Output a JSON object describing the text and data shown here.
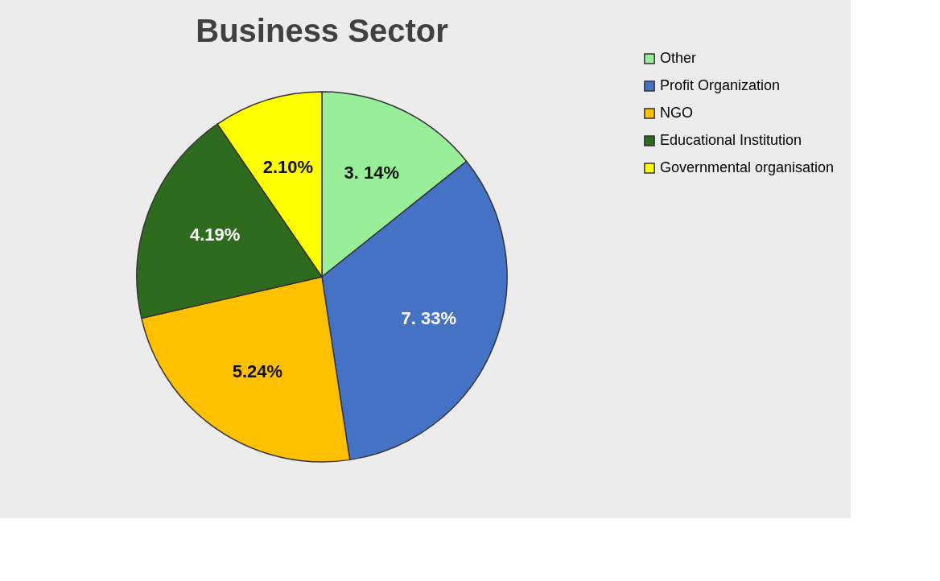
{
  "chart_data": {
    "type": "pie",
    "title": "Business Sector",
    "categories": [
      "Other",
      "Profit Organization",
      "NGO",
      "Educational Institution",
      "Governmental organisation"
    ],
    "values": [
      3.14,
      7.33,
      5.24,
      4.19,
      2.1
    ],
    "value_labels": [
      "3. 14%",
      "7. 33%",
      "5.24%",
      "4.19%",
      "2.10%"
    ],
    "colors": [
      "#99ee99",
      "#4472c4",
      "#ffc000",
      "#2e6b1f",
      "#ffff00"
    ],
    "legend": "right"
  }
}
